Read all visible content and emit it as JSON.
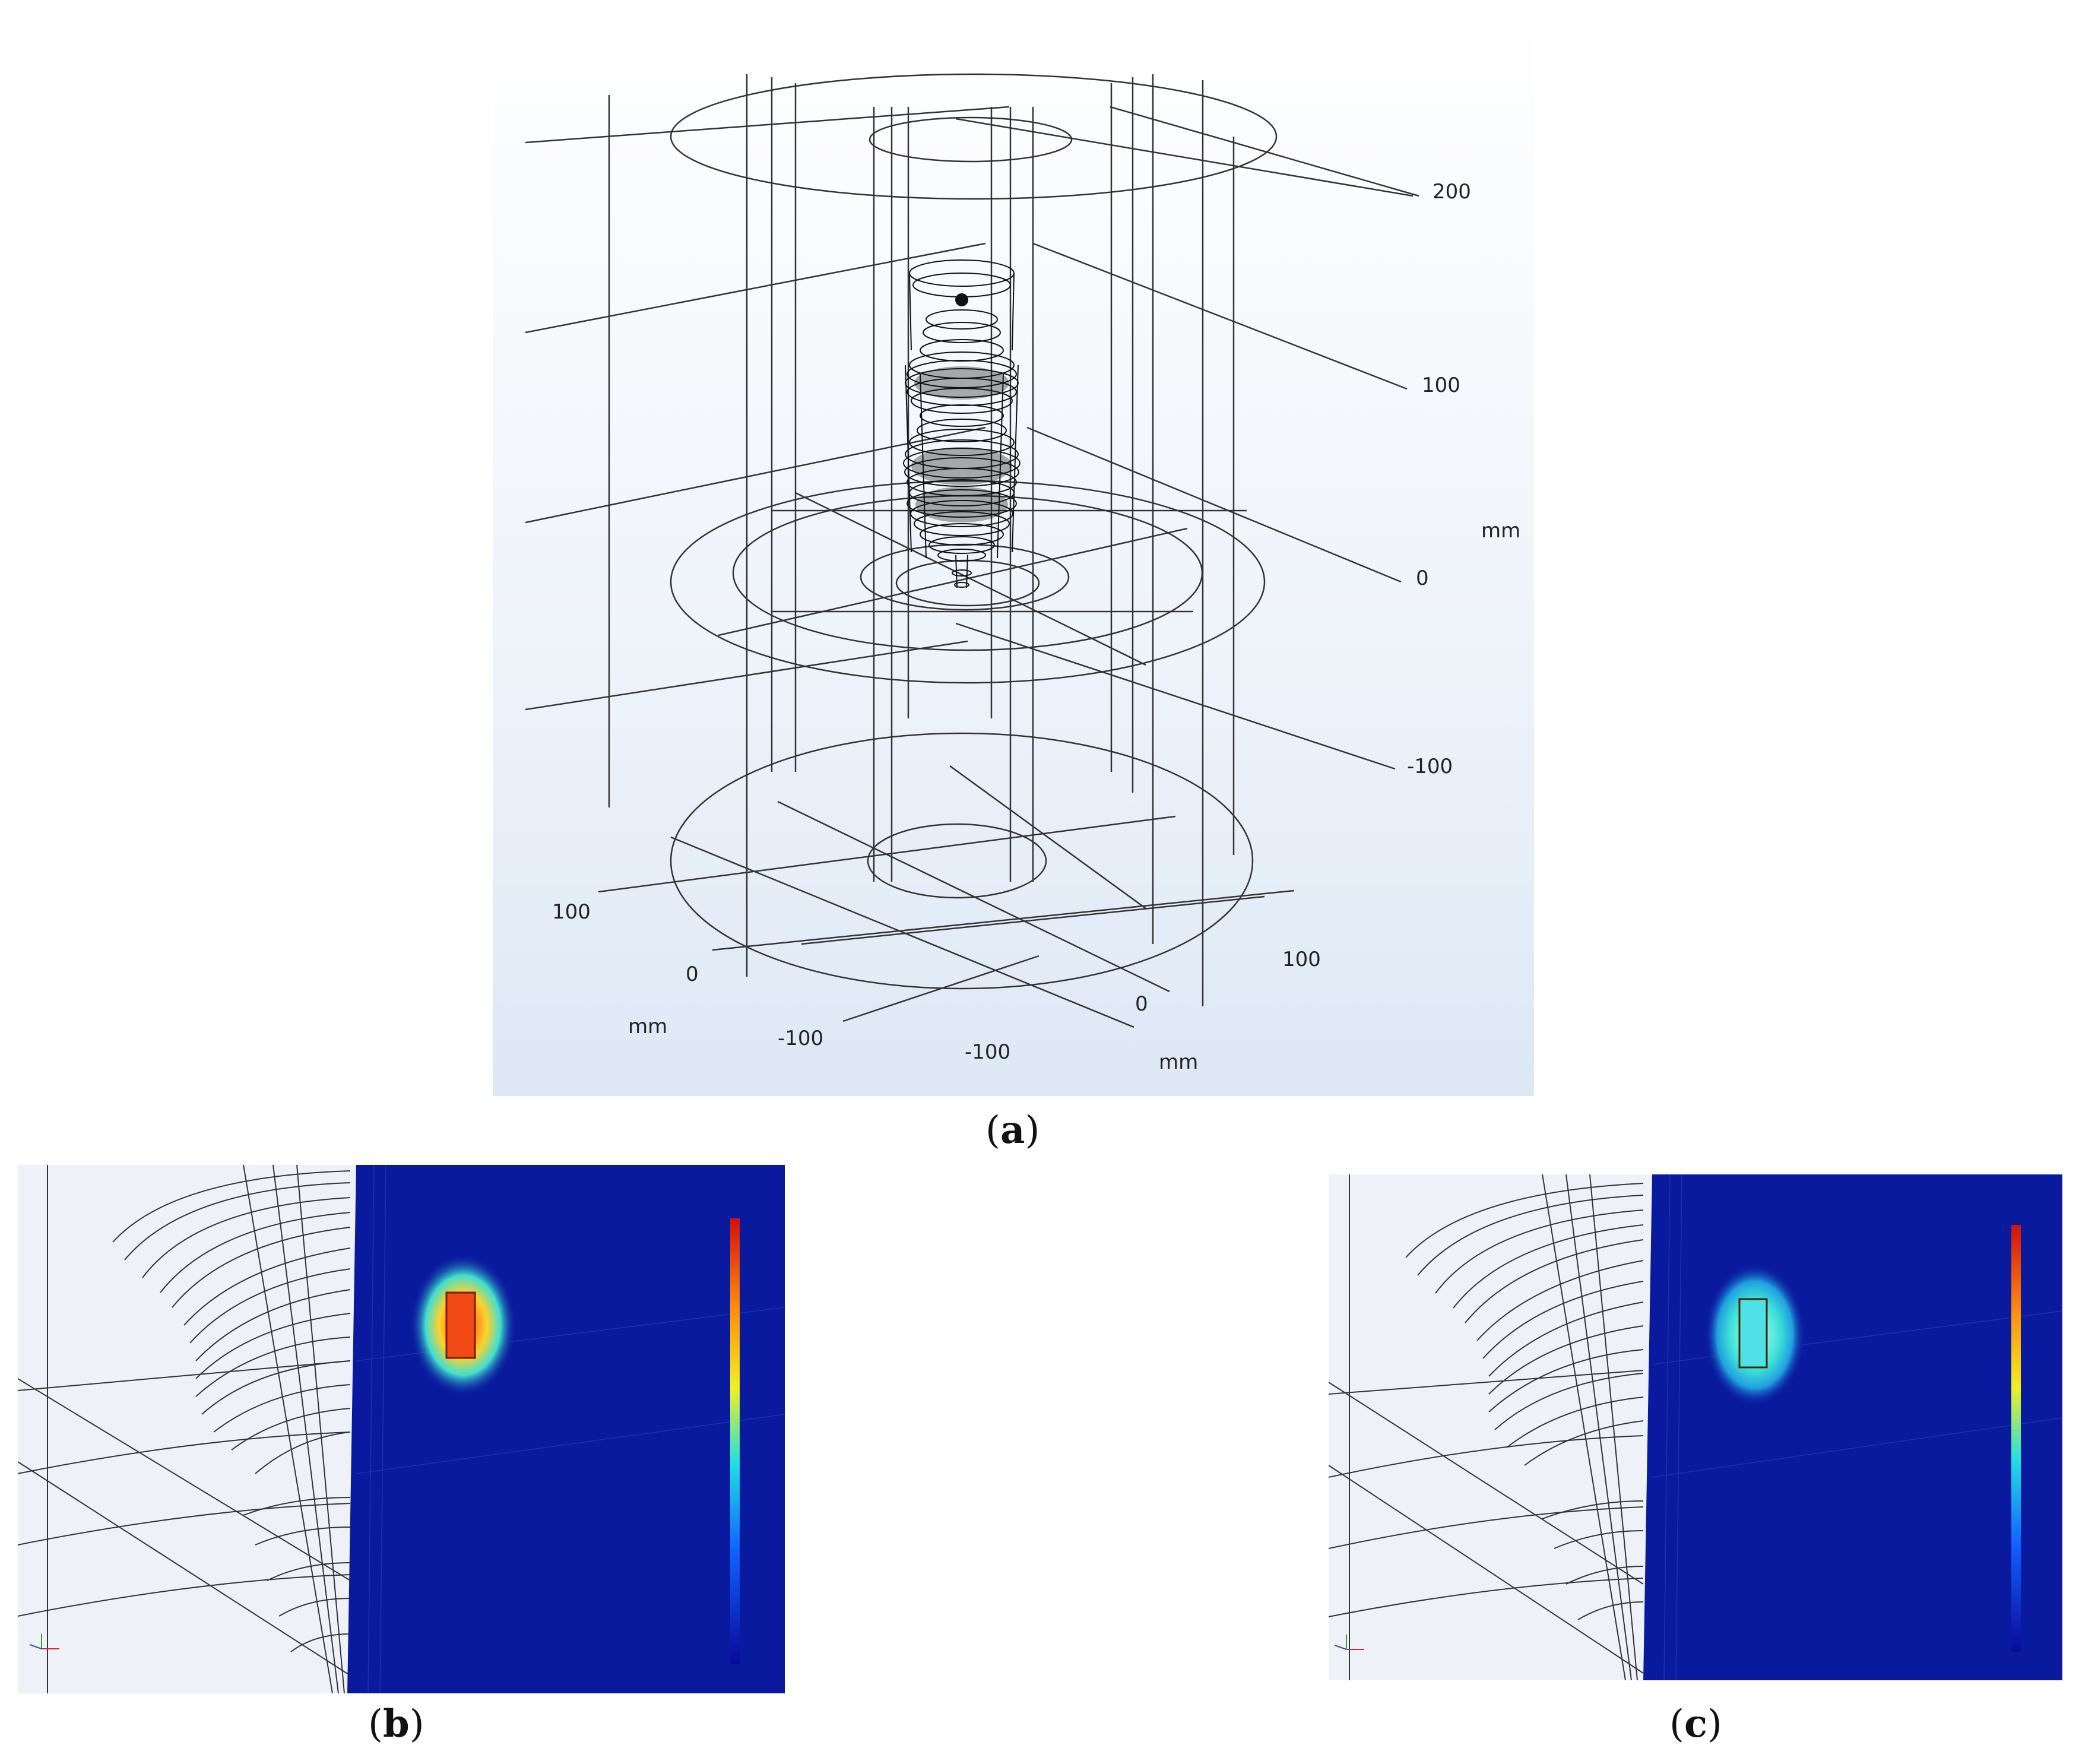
{
  "panel_a": {
    "vertical_ticks": [
      "200",
      "100",
      "0",
      "-100"
    ],
    "vertical_unit": "mm",
    "axis_left_ticks": [
      "100",
      "0",
      "-100"
    ],
    "axis_left_unit": "mm",
    "axis_right_ticks": [
      "100",
      "0",
      "-100"
    ],
    "axis_right_unit": "mm"
  },
  "captions": {
    "a": {
      "open": "(",
      "letter": "a",
      "close": ")"
    },
    "b": {
      "open": "(",
      "letter": "b",
      "close": ")"
    },
    "c": {
      "open": "(",
      "letter": "c",
      "close": ")"
    }
  },
  "colors": {
    "field_background": "#0a1a9e",
    "hot_b": "#f24a14",
    "hot_c": "#4fe0e8"
  }
}
